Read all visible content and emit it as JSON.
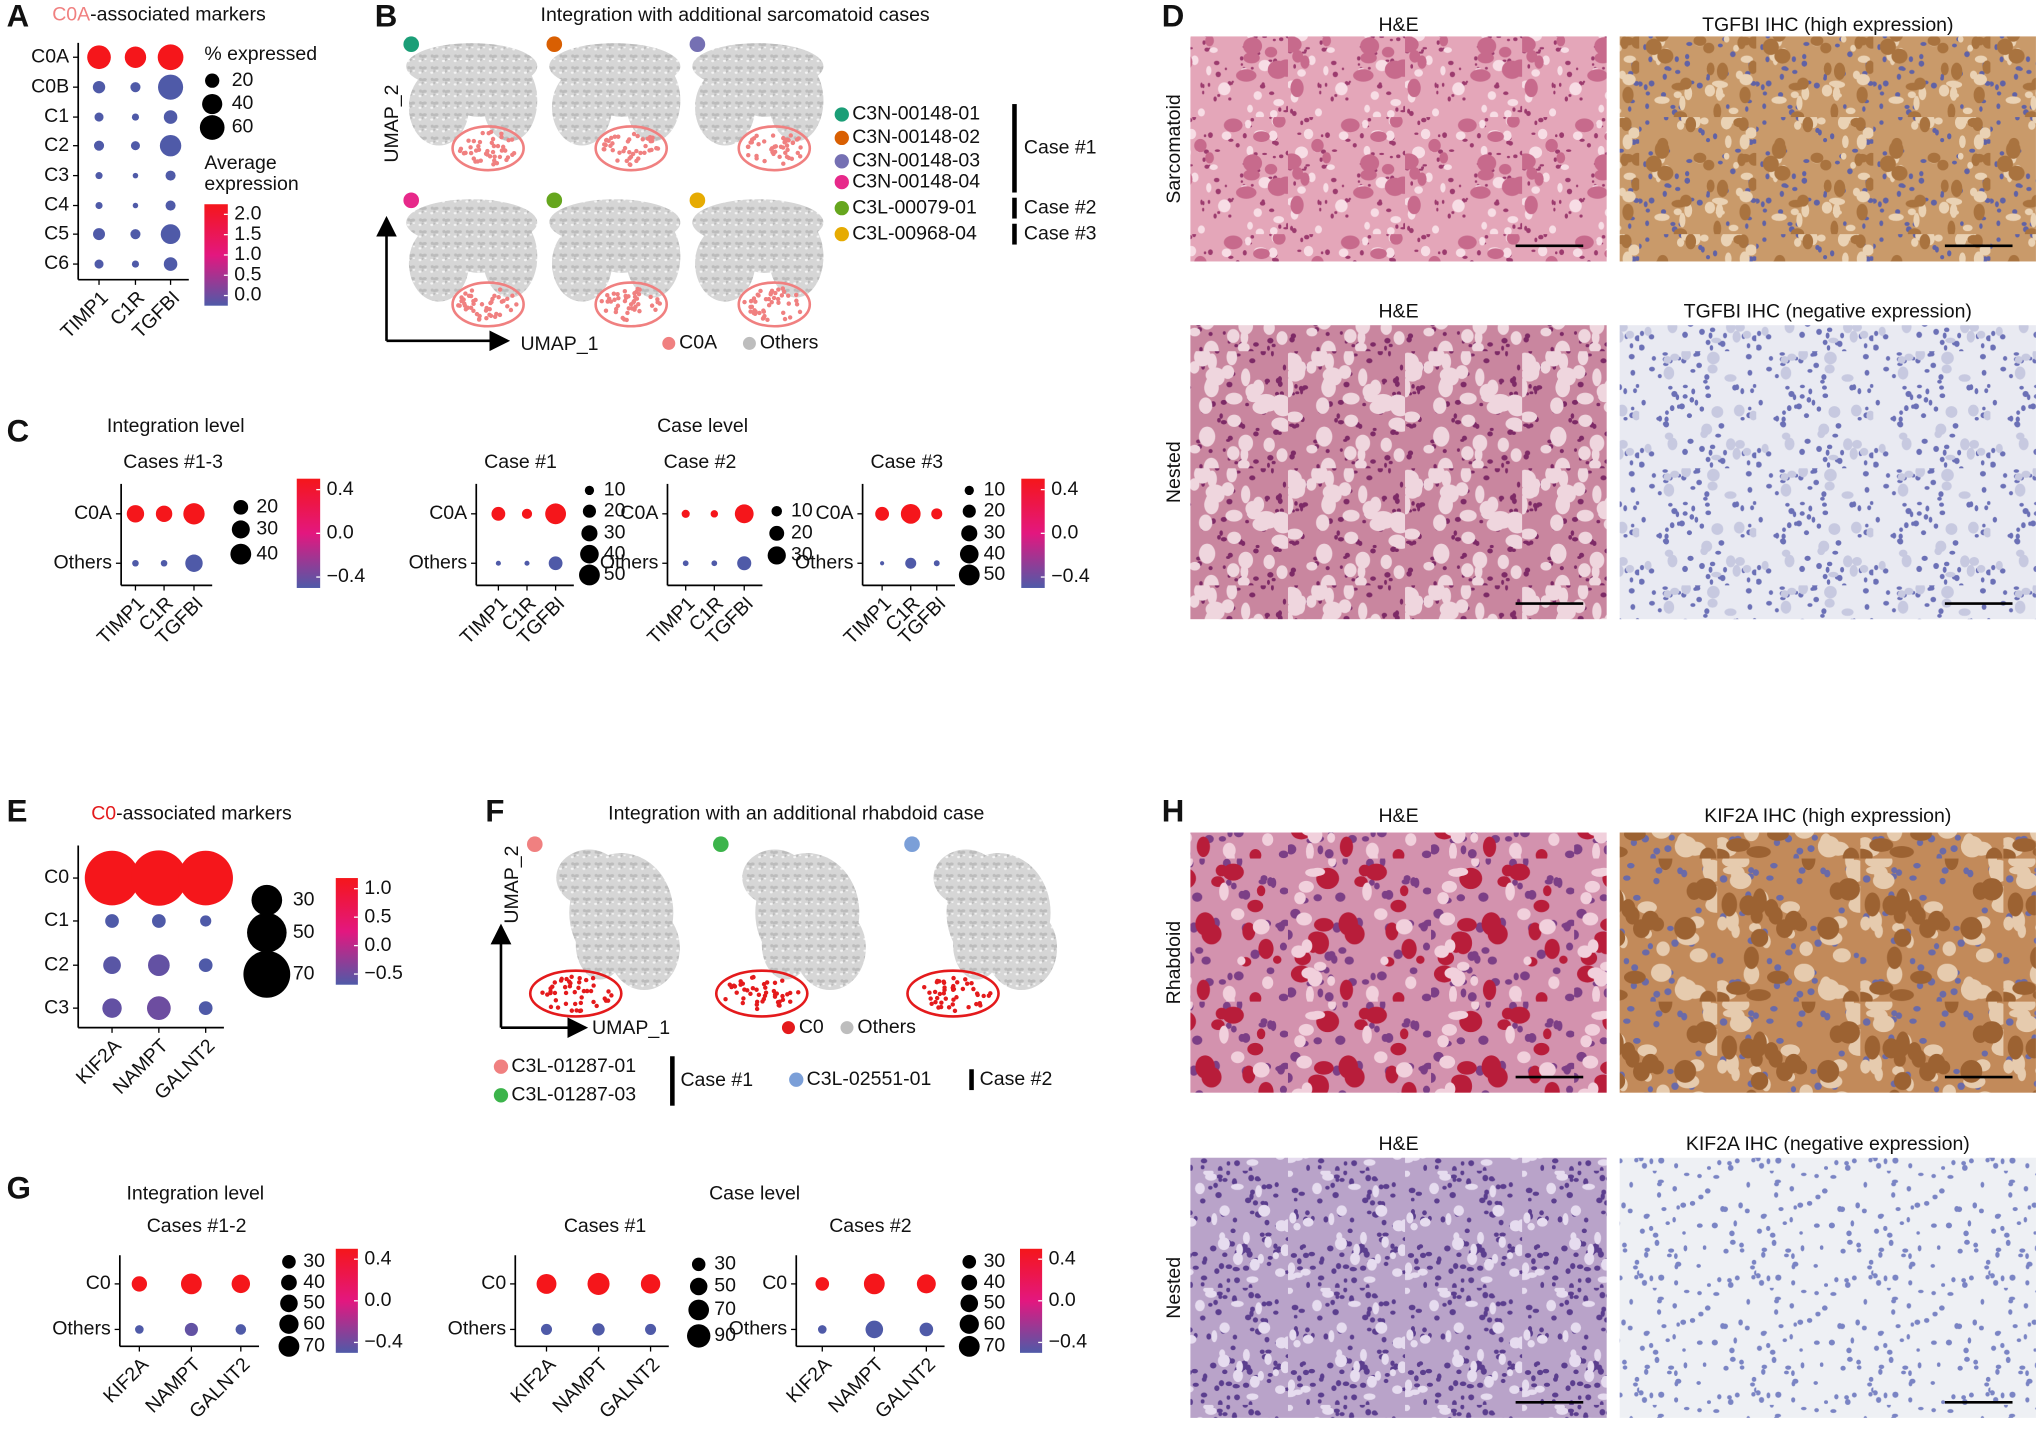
{
  "labels": [
    "A",
    "B",
    "C",
    "D",
    "E",
    "F",
    "G",
    "H"
  ],
  "color_scale": [
    "#4f5aa8",
    "#e3177f",
    "#f5161b"
  ],
  "A": {
    "title": {
      "highlight": "C0A",
      "rest": "-associated markers",
      "highlight_color": "#f08080"
    },
    "plot": {
      "rows": [
        "C0A",
        "C0B",
        "C1",
        "C2",
        "C3",
        "C4",
        "C5",
        "C6"
      ],
      "genes": [
        "TIMP1",
        "C1R",
        "TGFBI"
      ],
      "pct": [
        [
          55,
          45,
          65
        ],
        [
          15,
          10,
          62
        ],
        [
          8,
          5,
          18
        ],
        [
          10,
          8,
          45
        ],
        [
          5,
          3,
          10
        ],
        [
          5,
          3,
          10
        ],
        [
          14,
          10,
          38
        ],
        [
          8,
          5,
          18
        ]
      ],
      "expr": [
        [
          2.1,
          2.2,
          2.3
        ],
        [
          -0.1,
          -0.2,
          0.0
        ],
        [
          -0.2,
          -0.2,
          -0.1
        ],
        [
          -0.1,
          -0.2,
          0.0
        ],
        [
          -0.2,
          -0.2,
          -0.2
        ],
        [
          -0.2,
          -0.2,
          -0.2
        ],
        [
          -0.1,
          -0.2,
          0.0
        ],
        [
          -0.2,
          -0.2,
          -0.1
        ]
      ],
      "size_title": "% expressed",
      "size_ticks": [
        20,
        40,
        60
      ],
      "color_title": [
        "Average",
        "expression"
      ],
      "color_ticks": [
        {
          "value": 2,
          "label": "2.0"
        },
        1.5,
        {
          "value": 1,
          "label": "1.0"
        },
        0.5,
        {
          "value": 0,
          "label": "0.0"
        }
      ]
    }
  },
  "B": {
    "title": "Integration with additional sarcomatoid cases",
    "y_axis": "UMAP_2",
    "x_axis": "UMAP_1",
    "legend": [
      {
        "name": "C0A",
        "color": "#f08080"
      },
      {
        "name": "Others",
        "color": "#bdbdbd"
      }
    ],
    "cases": [
      {
        "name": "Case #1",
        "samples": [
          {
            "name": "C3N-00148-01",
            "color": "#1b9e77"
          },
          {
            "name": "C3N-00148-02",
            "color": "#d95f02"
          },
          {
            "name": "C3N-00148-03",
            "color": "#7570b3"
          },
          {
            "name": "C3N-00148-04",
            "color": "#e7298a"
          }
        ]
      },
      {
        "name": "Case #2",
        "samples": [
          {
            "name": "C3L-00079-01",
            "color": "#66a61e"
          }
        ]
      },
      {
        "name": "Case #3",
        "samples": [
          {
            "name": "C3L-00968-04",
            "color": "#e6ab02"
          }
        ]
      }
    ]
  },
  "C": {
    "integration_title": "Integration level",
    "case_title": "Case level",
    "plots": [
      {
        "title": "Cases #1-3",
        "rows": [
          "C0A",
          "Others"
        ],
        "genes": [
          "TIMP1",
          "C1R",
          "TGFBI"
        ],
        "pct": [
          [
            28,
            25,
            42
          ],
          [
            4,
            4,
            28
          ]
        ],
        "expr": [
          [
            0.45,
            0.45,
            0.45
          ],
          [
            -0.45,
            -0.45,
            -0.4
          ]
        ],
        "size_ticks": [
          20,
          30,
          40
        ],
        "color_ticks": [
          0.4,
          {
            "value": 0,
            "label": "0.0"
          },
          {
            "value": -0.4,
            "label": "−0.4"
          }
        ]
      },
      {
        "title": "Case #1",
        "rows": [
          "C0A",
          "Others"
        ],
        "genes": [
          "TIMP1",
          "C1R",
          "TGFBI"
        ],
        "pct": [
          [
            22,
            12,
            50
          ],
          [
            3,
            3,
            22
          ]
        ],
        "expr": [
          [
            0.45,
            0.45,
            0.45
          ],
          [
            -0.45,
            -0.45,
            -0.4
          ]
        ],
        "size_ticks": [
          10,
          20,
          30,
          40,
          50
        ]
      },
      {
        "title": "Case #2",
        "rows": [
          "C0A",
          "Others"
        ],
        "genes": [
          "TIMP1",
          "C1R",
          "TGFBI"
        ],
        "pct": [
          [
            6,
            5,
            32
          ],
          [
            3,
            3,
            18
          ]
        ],
        "expr": [
          [
            0.45,
            0.45,
            0.45
          ],
          [
            -0.45,
            -0.45,
            -0.4
          ]
        ],
        "size_ticks": [
          10,
          20,
          30
        ]
      },
      {
        "title": "Case #3",
        "rows": [
          "C0A",
          "Others"
        ],
        "genes": [
          "TIMP1",
          "C1R",
          "TGFBI"
        ],
        "pct": [
          [
            22,
            45,
            14
          ],
          [
            2,
            14,
            4
          ]
        ],
        "expr": [
          [
            0.45,
            0.45,
            0.45
          ],
          [
            -0.45,
            -0.45,
            -0.45
          ]
        ],
        "size_ticks": [
          10,
          20,
          30,
          40,
          50
        ],
        "color_ticks": [
          0.4,
          {
            "value": 0,
            "label": "0.0"
          },
          {
            "value": -0.4,
            "label": "−0.4"
          }
        ]
      }
    ]
  },
  "D": {
    "rows": [
      {
        "name": "Sarcomatoid",
        "headers": [
          "H&E",
          "TGFBI IHC (high expression)"
        ]
      },
      {
        "name": "Nested",
        "headers": [
          "H&E",
          "TGFBI IHC (negative expression)"
        ]
      }
    ]
  },
  "E": {
    "title": {
      "highlight": "C0",
      "rest": "-associated markers",
      "highlight_color": "#e41a1c"
    },
    "plot": {
      "rows": [
        "C0",
        "C1",
        "C2",
        "C3"
      ],
      "genes": [
        "KIF2A",
        "NAMPT",
        "GALNT2"
      ],
      "pct": [
        [
          95,
          98,
          95
        ],
        [
          6,
          6,
          4
        ],
        [
          10,
          15,
          6
        ],
        [
          12,
          18,
          6
        ]
      ],
      "expr": [
        [
          1.2,
          1.2,
          1.2
        ],
        [
          -0.5,
          -0.5,
          -0.5
        ],
        [
          -0.45,
          -0.4,
          -0.5
        ],
        [
          -0.4,
          -0.35,
          -0.5
        ]
      ],
      "size_ticks": [
        30,
        50,
        70
      ],
      "color_ticks": [
        {
          "value": 1,
          "label": "1.0"
        },
        0.5,
        {
          "value": 0,
          "label": "0.0"
        },
        {
          "value": -0.5,
          "label": "−0.5"
        }
      ]
    }
  },
  "F": {
    "title": "Integration with an additional rhabdoid case",
    "y_axis": "UMAP_2",
    "x_axis": "UMAP_1",
    "legend": [
      {
        "name": "C0",
        "color": "#e41a1c"
      },
      {
        "name": "Others",
        "color": "#bdbdbd"
      }
    ],
    "cases": [
      {
        "name": "Case #1",
        "samples": [
          {
            "name": "C3L-01287-01",
            "color": "#f08080"
          },
          {
            "name": "C3L-01287-03",
            "color": "#3cb44b"
          }
        ]
      },
      {
        "name": "Case #2",
        "samples": [
          {
            "name": "C3L-02551-01",
            "color": "#7b9fd8"
          }
        ]
      }
    ]
  },
  "G": {
    "integration_title": "Integration level",
    "case_title": "Case level",
    "plots": [
      {
        "title": "Cases #1-2",
        "rows": [
          "C0",
          "Others"
        ],
        "genes": [
          "KIF2A",
          "NAMPT",
          "GALNT2"
        ],
        "pct": [
          [
            38,
            70,
            55
          ],
          [
            12,
            28,
            18
          ]
        ],
        "expr": [
          [
            0.45,
            0.45,
            0.45
          ],
          [
            -0.45,
            -0.35,
            -0.4
          ]
        ],
        "size_ticks": [
          30,
          40,
          50,
          60,
          70
        ],
        "color_ticks": [
          0.4,
          {
            "value": 0,
            "label": "0.0"
          },
          {
            "value": -0.4,
            "label": "−0.4"
          }
        ]
      },
      {
        "title": "Cases #1",
        "rows": [
          "C0",
          "Others"
        ],
        "genes": [
          "KIF2A",
          "NAMPT",
          "GALNT2"
        ],
        "pct": [
          [
            65,
            80,
            62
          ],
          [
            20,
            25,
            20
          ]
        ],
        "expr": [
          [
            0.45,
            0.45,
            0.45
          ],
          [
            -0.45,
            -0.4,
            -0.4
          ]
        ],
        "size_ticks": [
          30,
          50,
          70,
          90
        ]
      },
      {
        "title": "Cases #2",
        "rows": [
          "C0",
          "Others"
        ],
        "genes": [
          "KIF2A",
          "NAMPT",
          "GALNT2"
        ],
        "pct": [
          [
            30,
            70,
            58
          ],
          [
            12,
            50,
            30
          ]
        ],
        "expr": [
          [
            0.45,
            0.45,
            0.45
          ],
          [
            -0.45,
            -0.45,
            -0.4
          ]
        ],
        "size_ticks": [
          30,
          40,
          50,
          60,
          70
        ],
        "color_ticks": [
          0.4,
          {
            "value": 0,
            "label": "0.0"
          },
          {
            "value": -0.4,
            "label": "−0.4"
          }
        ]
      }
    ]
  },
  "H": {
    "rows": [
      {
        "name": "Rhabdoid",
        "headers": [
          "H&E",
          "KIF2A IHC (high expression)"
        ]
      },
      {
        "name": "Nested",
        "headers": [
          "H&E",
          "KIF2A IHC (negative expression)"
        ]
      }
    ]
  }
}
